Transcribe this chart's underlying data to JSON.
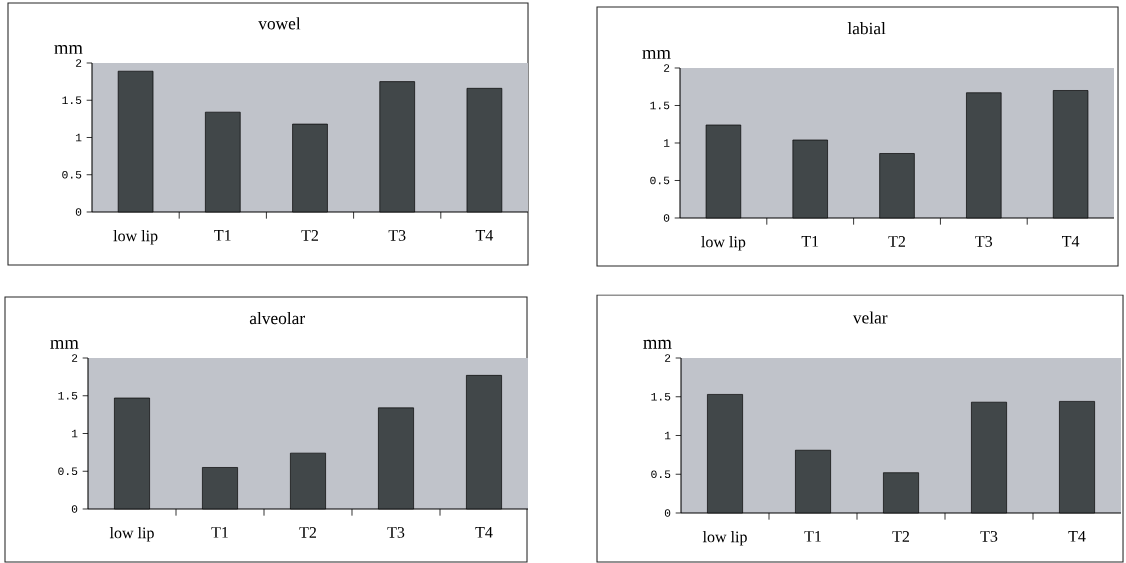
{
  "chart_data": [
    {
      "type": "bar",
      "title": "vowel",
      "ylabel": "mm",
      "categories": [
        "low lip",
        "T1",
        "T2",
        "T3",
        "T4"
      ],
      "values": [
        1.89,
        1.34,
        1.18,
        1.75,
        1.66
      ],
      "color": "#414749",
      "ylim": [
        0,
        2
      ],
      "yticks": [
        0,
        0.5,
        1,
        1.5,
        2
      ]
    },
    {
      "type": "bar",
      "title": "labial",
      "ylabel": "mm",
      "categories": [
        "low lip",
        "T1",
        "T2",
        "T3",
        "T4"
      ],
      "values": [
        1.24,
        1.04,
        0.86,
        1.67,
        1.7
      ],
      "color": "#414749",
      "ylim": [
        0,
        2
      ],
      "yticks": [
        0,
        0.5,
        1,
        1.5,
        2
      ]
    },
    {
      "type": "bar",
      "title": "alveolar",
      "ylabel": "mm",
      "categories": [
        "low lip",
        "T1",
        "T2",
        "T3",
        "T4"
      ],
      "values": [
        1.47,
        0.55,
        0.74,
        1.34,
        1.77
      ],
      "color": "#414749",
      "ylim": [
        0,
        2
      ],
      "yticks": [
        0,
        0.5,
        1,
        1.5,
        2
      ]
    },
    {
      "type": "bar",
      "title": "velar",
      "ylabel": "mm",
      "categories": [
        "low lip",
        "T1",
        "T2",
        "T3",
        "T4"
      ],
      "values": [
        1.53,
        0.81,
        0.52,
        1.43,
        1.44
      ],
      "color": "#414749",
      "ylim": [
        0,
        2
      ],
      "yticks": [
        0,
        0.5,
        1,
        1.5,
        2
      ]
    }
  ]
}
